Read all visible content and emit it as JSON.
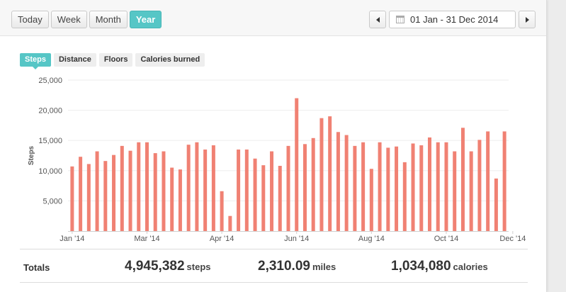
{
  "toolbar": {
    "ranges": [
      "Today",
      "Week",
      "Month",
      "Year"
    ],
    "active_range": "Year",
    "date_range": "01 Jan - 31 Dec 2014"
  },
  "metric_tabs": [
    "Steps",
    "Distance",
    "Floors",
    "Calories burned"
  ],
  "active_metric": "Steps",
  "colors": {
    "accent": "#56c6c6",
    "bar": "#f08173"
  },
  "icons": [
    "chevron-left-icon",
    "calendar-icon",
    "chevron-right-icon"
  ],
  "chart_data": {
    "type": "bar",
    "ylabel": "Steps",
    "ylim": [
      0,
      25000
    ],
    "yticks": [
      5000,
      10000,
      15000,
      20000,
      25000
    ],
    "ytick_labels": [
      "5,000",
      "10,000",
      "15,000",
      "20,000",
      "25,000"
    ],
    "xtick_labels": [
      "Jan '14",
      "Mar '14",
      "Apr '14",
      "Jun '14",
      "Aug '14",
      "Oct '14",
      "Dec '14"
    ],
    "xtick_bar_index": [
      0,
      9,
      18,
      27,
      36,
      45,
      53
    ],
    "grid": true,
    "series": [
      {
        "values": [
          10700,
          12300,
          11100,
          13200,
          11600,
          12600,
          14100,
          13300,
          14700,
          14700,
          12900,
          13200,
          10500,
          10200,
          14300,
          14700,
          13500,
          14200,
          6600,
          2500,
          13500,
          13500,
          12000,
          10900,
          13200,
          10800,
          14100,
          22000,
          14400,
          15400,
          18700,
          19000,
          16400,
          15900,
          14100,
          14700,
          10300,
          14700,
          13800,
          14000,
          11400,
          14500,
          14200,
          15500,
          14700,
          14700,
          13200,
          17100,
          13200,
          15100,
          16500,
          8700,
          16500
        ]
      }
    ]
  },
  "totals": {
    "label": "Totals",
    "steps": {
      "value": "4,945,382",
      "unit": "steps"
    },
    "miles": {
      "value": "2,310.09",
      "unit": "miles"
    },
    "calories": {
      "value": "1,034,080",
      "unit": "calories"
    }
  }
}
